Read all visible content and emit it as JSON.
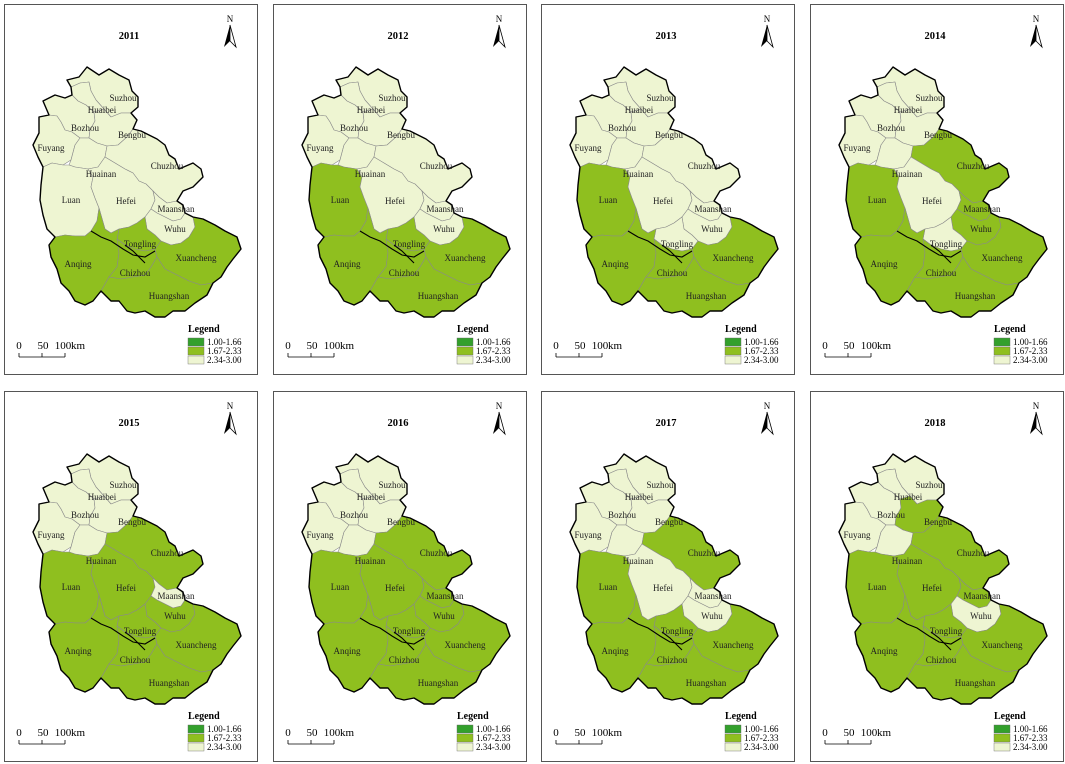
{
  "colors": {
    "class1": "#33a02c",
    "class2": "#8fbf1f",
    "class3": "#eef5d2"
  },
  "legend": {
    "title": "Legend",
    "classes": [
      "1.00-1.66",
      "1.67-2.33",
      "2.34-3.00"
    ]
  },
  "north_label": "N",
  "scale_bar": {
    "ticks": [
      "0",
      "50",
      "100"
    ],
    "unit": "km"
  },
  "city_names": [
    "Suzhou",
    "Huaibei",
    "Bozhou",
    "Bengbu",
    "Fuyang",
    "Huainan",
    "Chuzhou",
    "Luan",
    "Hefei",
    "Maanshan",
    "Wuhu",
    "Tongling",
    "Anqing",
    "Chizhou",
    "Xuancheng",
    "Huangshan"
  ],
  "chart_data": [
    {
      "type": "choropleth",
      "year": "2011",
      "classes": {
        "Suzhou": 3,
        "Huaibei": 3,
        "Bozhou": 3,
        "Bengbu": 3,
        "Fuyang": 3,
        "Huainan": 3,
        "Chuzhou": 3,
        "Luan": 3,
        "Hefei": 3,
        "Maanshan": 3,
        "Wuhu": 3,
        "Tongling": 2,
        "Anqing": 2,
        "Chizhou": 2,
        "Xuancheng": 2,
        "Huangshan": 2
      }
    },
    {
      "type": "choropleth",
      "year": "2012",
      "classes": {
        "Suzhou": 3,
        "Huaibei": 3,
        "Bozhou": 3,
        "Bengbu": 3,
        "Fuyang": 3,
        "Huainan": 3,
        "Chuzhou": 3,
        "Luan": 2,
        "Hefei": 3,
        "Maanshan": 3,
        "Wuhu": 3,
        "Tongling": 2,
        "Anqing": 2,
        "Chizhou": 2,
        "Xuancheng": 2,
        "Huangshan": 2
      }
    },
    {
      "type": "choropleth",
      "year": "2013",
      "classes": {
        "Suzhou": 3,
        "Huaibei": 3,
        "Bozhou": 3,
        "Bengbu": 3,
        "Fuyang": 3,
        "Huainan": 3,
        "Chuzhou": 3,
        "Luan": 2,
        "Hefei": 3,
        "Maanshan": 3,
        "Wuhu": 3,
        "Tongling": 3,
        "Anqing": 2,
        "Chizhou": 2,
        "Xuancheng": 2,
        "Huangshan": 2
      }
    },
    {
      "type": "choropleth",
      "year": "2014",
      "classes": {
        "Suzhou": 3,
        "Huaibei": 3,
        "Bozhou": 3,
        "Bengbu": 3,
        "Fuyang": 3,
        "Huainan": 3,
        "Chuzhou": 2,
        "Luan": 2,
        "Hefei": 3,
        "Maanshan": 2,
        "Wuhu": 2,
        "Tongling": 3,
        "Anqing": 2,
        "Chizhou": 2,
        "Xuancheng": 2,
        "Huangshan": 2
      }
    },
    {
      "type": "choropleth",
      "year": "2015",
      "classes": {
        "Suzhou": 3,
        "Huaibei": 3,
        "Bozhou": 3,
        "Bengbu": 3,
        "Fuyang": 3,
        "Huainan": 3,
        "Chuzhou": 2,
        "Luan": 2,
        "Hefei": 2,
        "Maanshan": 3,
        "Wuhu": 2,
        "Tongling": 2,
        "Anqing": 2,
        "Chizhou": 2,
        "Xuancheng": 2,
        "Huangshan": 2
      }
    },
    {
      "type": "choropleth",
      "year": "2016",
      "classes": {
        "Suzhou": 3,
        "Huaibei": 3,
        "Bozhou": 3,
        "Bengbu": 3,
        "Fuyang": 3,
        "Huainan": 3,
        "Chuzhou": 2,
        "Luan": 2,
        "Hefei": 2,
        "Maanshan": 2,
        "Wuhu": 2,
        "Tongling": 2,
        "Anqing": 2,
        "Chizhou": 2,
        "Xuancheng": 2,
        "Huangshan": 2
      }
    },
    {
      "type": "choropleth",
      "year": "2017",
      "classes": {
        "Suzhou": 3,
        "Huaibei": 3,
        "Bozhou": 3,
        "Bengbu": 3,
        "Fuyang": 3,
        "Huainan": 3,
        "Chuzhou": 2,
        "Luan": 2,
        "Hefei": 3,
        "Maanshan": 3,
        "Wuhu": 3,
        "Tongling": 2,
        "Anqing": 2,
        "Chizhou": 2,
        "Xuancheng": 2,
        "Huangshan": 2
      }
    },
    {
      "type": "choropleth",
      "year": "2018",
      "classes": {
        "Suzhou": 3,
        "Huaibei": 3,
        "Bozhou": 3,
        "Bengbu": 2,
        "Fuyang": 3,
        "Huainan": 3,
        "Chuzhou": 2,
        "Luan": 2,
        "Hefei": 2,
        "Maanshan": 2,
        "Wuhu": 3,
        "Tongling": 2,
        "Anqing": 2,
        "Chizhou": 2,
        "Xuancheng": 2,
        "Huangshan": 2
      }
    }
  ]
}
